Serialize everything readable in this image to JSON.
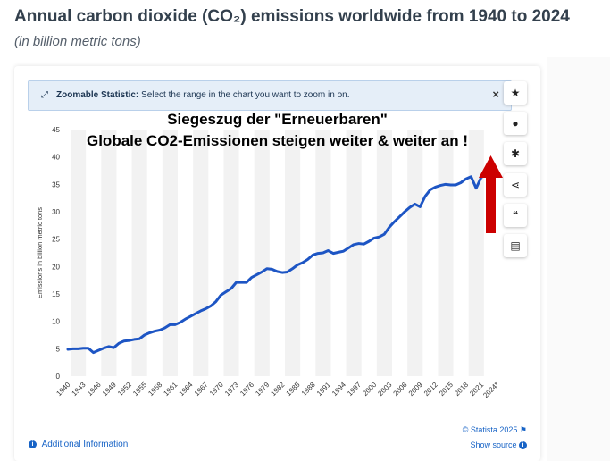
{
  "header": {
    "title": "Annual carbon dioxide (CO₂) emissions worldwide from 1940 to 2024",
    "subtitle": "(in billion metric tons)"
  },
  "zoom_banner": {
    "icon": "expand-arrows-icon",
    "bold": "Zoomable Statistic:",
    "text": "Select the range in the chart you want to zoom in on.",
    "close": "×"
  },
  "overlay": {
    "line1": "Siegeszug der \"Erneuerbaren\"",
    "line2": "Globale CO2-Emissionen steigen weiter & weiter an !"
  },
  "toolbar": [
    {
      "name": "star-icon",
      "glyph": "★"
    },
    {
      "name": "bell-icon",
      "glyph": "●"
    },
    {
      "name": "gear-icon",
      "glyph": "✱"
    },
    {
      "name": "share-icon",
      "glyph": "⋖"
    },
    {
      "name": "quote-icon",
      "glyph": "❝"
    },
    {
      "name": "print-icon",
      "glyph": "▤"
    }
  ],
  "footer": {
    "additional_info": "Additional Information",
    "copyright": "© Statista 2025",
    "show_source": "Show source"
  },
  "colors": {
    "line": "#1d55c4",
    "arrow": "#cc0000",
    "band": "#f2f2f2",
    "title": "#33404d"
  },
  "chart_data": {
    "type": "line",
    "title": "",
    "xlabel": "",
    "ylabel": "Emissions in billion metric tons",
    "ylim": [
      0,
      45
    ],
    "yticks": [
      0,
      5,
      10,
      15,
      20,
      25,
      30,
      35,
      40,
      45
    ],
    "grid": "alternating vertical bands",
    "xtick_labels": [
      "1940",
      "1943",
      "1946",
      "1949",
      "1952",
      "1955",
      "1958",
      "1961",
      "1964",
      "1967",
      "1970",
      "1973",
      "1976",
      "1979",
      "1982",
      "1985",
      "1988",
      "1991",
      "1994",
      "1997",
      "2000",
      "2003",
      "2006",
      "2009",
      "2012",
      "2015",
      "2018",
      "2021",
      "2024*"
    ],
    "x": [
      1940,
      1941,
      1942,
      1943,
      1944,
      1945,
      1946,
      1947,
      1948,
      1949,
      1950,
      1951,
      1952,
      1953,
      1954,
      1955,
      1956,
      1957,
      1958,
      1959,
      1960,
      1961,
      1962,
      1963,
      1964,
      1965,
      1966,
      1967,
      1968,
      1969,
      1970,
      1971,
      1972,
      1973,
      1974,
      1975,
      1976,
      1977,
      1978,
      1979,
      1980,
      1981,
      1982,
      1983,
      1984,
      1985,
      1986,
      1987,
      1988,
      1989,
      1990,
      1991,
      1992,
      1993,
      1994,
      1995,
      1996,
      1997,
      1998,
      1999,
      2000,
      2001,
      2002,
      2003,
      2004,
      2005,
      2006,
      2007,
      2008,
      2009,
      2010,
      2011,
      2012,
      2013,
      2014,
      2015,
      2016,
      2017,
      2018,
      2019,
      2020,
      2021,
      2022,
      2023,
      2024
    ],
    "series": [
      {
        "values": [
          4.9,
          5.0,
          5.0,
          5.1,
          5.1,
          4.3,
          4.7,
          5.1,
          5.4,
          5.2,
          6.0,
          6.4,
          6.5,
          6.7,
          6.8,
          7.5,
          7.9,
          8.2,
          8.4,
          8.8,
          9.4,
          9.4,
          9.8,
          10.4,
          10.9,
          11.4,
          11.9,
          12.3,
          12.8,
          13.6,
          14.8,
          15.4,
          16.0,
          17.1,
          17.1,
          17.1,
          18.0,
          18.5,
          19.0,
          19.6,
          19.5,
          19.1,
          18.9,
          19.0,
          19.6,
          20.3,
          20.7,
          21.3,
          22.1,
          22.4,
          22.5,
          22.9,
          22.4,
          22.6,
          22.8,
          23.4,
          24.0,
          24.2,
          24.1,
          24.6,
          25.2,
          25.4,
          25.9,
          27.2,
          28.2,
          29.1,
          30.0,
          30.8,
          31.4,
          30.9,
          32.8,
          34.0,
          34.5,
          34.8,
          35.0,
          34.9,
          34.9,
          35.3,
          36.0,
          36.4,
          34.3,
          36.3,
          36.7,
          37.2,
          37.5
        ]
      }
    ]
  }
}
